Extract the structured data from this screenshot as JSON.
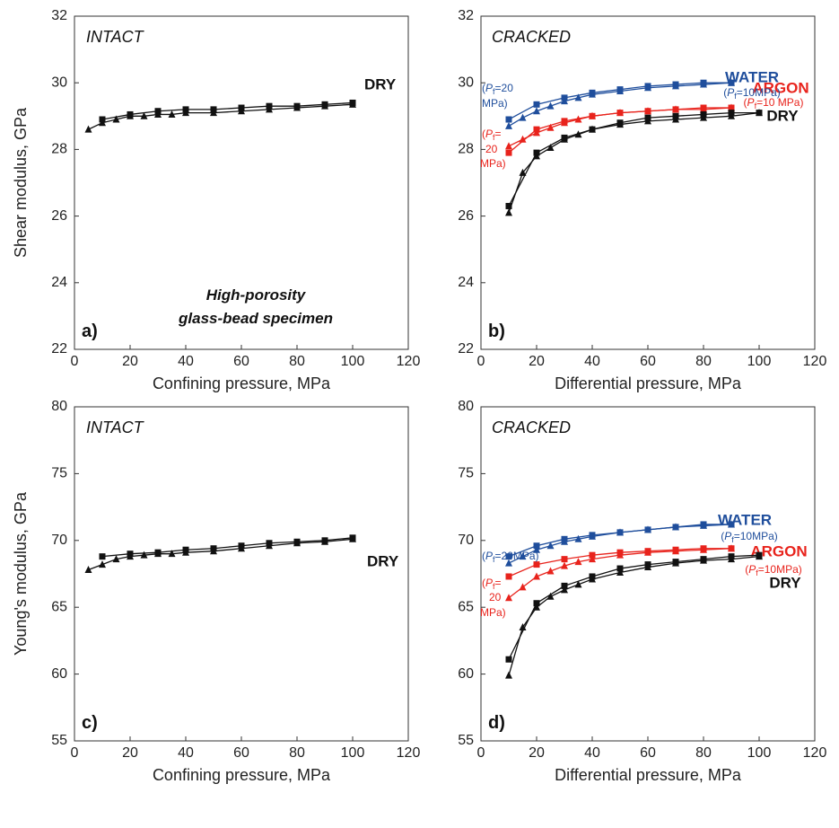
{
  "chart_data": [
    {
      "type": "line",
      "xlabel": "Confining pressure, MPa",
      "ylabel": "Shear modulus, GPa",
      "xlim": [
        0,
        120
      ],
      "xticks": [
        0,
        20,
        40,
        60,
        80,
        100,
        120
      ],
      "ylim": [
        22,
        32
      ],
      "yticks": [
        22,
        24,
        26,
        28,
        30,
        32
      ],
      "series": [
        {
          "name": "DRY",
          "color": "#111111",
          "marker": "triangle",
          "x": [
            5,
            10,
            15,
            20,
            25,
            30,
            35,
            40,
            50,
            60,
            70,
            80,
            90,
            100
          ],
          "values": [
            28.6,
            28.8,
            28.9,
            29.0,
            29.0,
            29.05,
            29.05,
            29.1,
            29.1,
            29.15,
            29.2,
            29.25,
            29.3,
            29.35
          ]
        },
        {
          "color": "#111111",
          "marker": "square",
          "x": [
            100,
            90,
            80,
            70,
            60,
            50,
            40,
            30,
            20,
            10
          ],
          "values": [
            29.4,
            29.35,
            29.3,
            29.3,
            29.25,
            29.2,
            29.2,
            29.15,
            29.05,
            28.9
          ]
        }
      ],
      "annotations": [
        {
          "parts": [
            "INTACT"
          ]
        },
        {
          "parts": [
            "High-porosity"
          ]
        },
        {
          "parts": [
            "glass-bead specimen"
          ]
        },
        {
          "parts": [
            "a)"
          ]
        }
      ]
    },
    {
      "type": "line",
      "xlabel": "Differential pressure, MPa",
      "xlim": [
        0,
        120
      ],
      "xticks": [
        0,
        20,
        40,
        60,
        80,
        100,
        120
      ],
      "ylim": [
        22,
        32
      ],
      "yticks": [
        22,
        24,
        26,
        28,
        30,
        32
      ],
      "series": [
        {
          "name": "WATER",
          "color": "#1f4e9c",
          "marker": "triangle",
          "x": [
            10,
            15,
            20,
            25,
            30,
            35,
            40,
            50,
            60,
            70,
            80,
            90
          ],
          "values": [
            28.7,
            28.95,
            29.15,
            29.3,
            29.45,
            29.55,
            29.65,
            29.75,
            29.85,
            29.9,
            29.95,
            30.0
          ]
        },
        {
          "color": "#1f4e9c",
          "marker": "square",
          "x": [
            90,
            80,
            70,
            60,
            50,
            40,
            30,
            20,
            10
          ],
          "values": [
            30.0,
            30.0,
            29.95,
            29.9,
            29.8,
            29.7,
            29.55,
            29.35,
            28.9
          ]
        },
        {
          "name": "ARGON",
          "color": "#e8231c",
          "marker": "triangle",
          "x": [
            10,
            15,
            20,
            25,
            30,
            35,
            40,
            50,
            60,
            70,
            80,
            90
          ],
          "values": [
            28.1,
            28.3,
            28.5,
            28.65,
            28.8,
            28.9,
            29.0,
            29.1,
            29.15,
            29.2,
            29.2,
            29.25
          ]
        },
        {
          "color": "#e8231c",
          "marker": "square",
          "x": [
            90,
            80,
            70,
            60,
            50,
            40,
            30,
            20,
            10
          ],
          "values": [
            29.25,
            29.25,
            29.2,
            29.15,
            29.1,
            29.0,
            28.85,
            28.6,
            27.9
          ]
        },
        {
          "name": "DRY",
          "color": "#111111",
          "marker": "triangle",
          "x": [
            10,
            15,
            20,
            25,
            30,
            35,
            40,
            50,
            60,
            70,
            80,
            90,
            100
          ],
          "values": [
            26.1,
            27.3,
            27.8,
            28.05,
            28.3,
            28.45,
            28.6,
            28.75,
            28.85,
            28.9,
            28.95,
            29.0,
            29.1
          ]
        },
        {
          "color": "#111111",
          "marker": "square",
          "x": [
            100,
            90,
            80,
            70,
            60,
            50,
            40,
            30,
            20,
            10
          ],
          "values": [
            29.1,
            29.1,
            29.05,
            29.0,
            28.95,
            28.8,
            28.6,
            28.35,
            27.9,
            26.3
          ]
        }
      ],
      "annotations": [
        {
          "parts": [
            "CRACKED"
          ]
        },
        {
          "parts": [
            "b)"
          ]
        },
        {
          "parts": [
            "(",
            "P",
            "f",
            "=10MPa)"
          ],
          "color": "#1f4e9c"
        },
        {
          "parts": [
            "(",
            "P",
            "f",
            "=20"
          ],
          "color": "#1f4e9c"
        },
        {
          "parts": [
            "MPa)"
          ],
          "color": "#1f4e9c"
        },
        {
          "parts": [
            "(",
            "P",
            "f",
            "=10 MPa)"
          ],
          "color": "#e8231c"
        },
        {
          "parts": [
            "(",
            "P",
            "f",
            "="
          ],
          "color": "#e8231c"
        },
        {
          "parts": [
            "20"
          ],
          "color": "#e8231c"
        },
        {
          "parts": [
            "MPa)"
          ],
          "color": "#e8231c"
        }
      ]
    },
    {
      "type": "line",
      "xlabel": "Confining pressure, MPa",
      "ylabel": "Young's modulus, GPa",
      "xlim": [
        0,
        120
      ],
      "xticks": [
        0,
        20,
        40,
        60,
        80,
        100,
        120
      ],
      "ylim": [
        55,
        80
      ],
      "yticks": [
        55,
        60,
        65,
        70,
        75,
        80
      ],
      "series": [
        {
          "name": "DRY",
          "color": "#111111",
          "marker": "triangle",
          "x": [
            5,
            10,
            15,
            20,
            25,
            30,
            35,
            40,
            50,
            60,
            70,
            80,
            90,
            100
          ],
          "values": [
            67.8,
            68.2,
            68.6,
            68.8,
            68.9,
            69.0,
            69.0,
            69.1,
            69.2,
            69.4,
            69.6,
            69.8,
            69.9,
            70.1
          ]
        },
        {
          "color": "#111111",
          "marker": "square",
          "x": [
            100,
            90,
            80,
            70,
            60,
            50,
            40,
            30,
            20,
            10
          ],
          "values": [
            70.2,
            70.0,
            69.9,
            69.8,
            69.6,
            69.4,
            69.3,
            69.1,
            69.0,
            68.8
          ]
        }
      ],
      "annotations": [
        {
          "parts": [
            "INTACT"
          ]
        },
        {
          "parts": [
            "c)"
          ]
        }
      ]
    },
    {
      "type": "line",
      "xlabel": "Differential pressure, MPa",
      "xlim": [
        0,
        120
      ],
      "xticks": [
        0,
        20,
        40,
        60,
        80,
        100,
        120
      ],
      "ylim": [
        55,
        80
      ],
      "yticks": [
        55,
        60,
        65,
        70,
        75,
        80
      ],
      "series": [
        {
          "name": "WATER",
          "color": "#1f4e9c",
          "marker": "triangle",
          "x": [
            10,
            15,
            20,
            25,
            30,
            35,
            40,
            50,
            60,
            70,
            80,
            90
          ],
          "values": [
            68.3,
            68.8,
            69.3,
            69.6,
            69.9,
            70.1,
            70.3,
            70.6,
            70.8,
            71.0,
            71.1,
            71.2
          ]
        },
        {
          "color": "#1f4e9c",
          "marker": "square",
          "x": [
            90,
            80,
            70,
            60,
            50,
            40,
            30,
            20,
            10
          ],
          "values": [
            71.2,
            71.2,
            71.0,
            70.8,
            70.6,
            70.4,
            70.1,
            69.6,
            68.8
          ]
        },
        {
          "name": "ARGON",
          "color": "#e8231c",
          "marker": "triangle",
          "x": [
            10,
            15,
            20,
            25,
            30,
            35,
            40,
            50,
            60,
            70,
            80,
            90
          ],
          "values": [
            65.7,
            66.5,
            67.3,
            67.7,
            68.1,
            68.4,
            68.6,
            68.9,
            69.1,
            69.2,
            69.3,
            69.4
          ]
        },
        {
          "color": "#e8231c",
          "marker": "square",
          "x": [
            90,
            80,
            70,
            60,
            50,
            40,
            30,
            20,
            10
          ],
          "values": [
            69.4,
            69.4,
            69.3,
            69.2,
            69.1,
            68.9,
            68.6,
            68.2,
            67.3
          ]
        },
        {
          "name": "DRY",
          "color": "#111111",
          "marker": "triangle",
          "x": [
            10,
            15,
            20,
            25,
            30,
            35,
            40,
            50,
            60,
            70,
            80,
            90,
            100
          ],
          "values": [
            59.9,
            63.5,
            65.0,
            65.8,
            66.3,
            66.7,
            67.1,
            67.6,
            68.0,
            68.3,
            68.5,
            68.6,
            68.8
          ]
        },
        {
          "color": "#111111",
          "marker": "square",
          "x": [
            100,
            90,
            80,
            70,
            60,
            50,
            40,
            30,
            20,
            10
          ],
          "values": [
            68.9,
            68.8,
            68.6,
            68.4,
            68.2,
            67.9,
            67.3,
            66.6,
            65.3,
            61.1
          ]
        }
      ],
      "annotations": [
        {
          "parts": [
            "CRACKED"
          ]
        },
        {
          "parts": [
            "d)"
          ]
        },
        {
          "parts": [
            "(",
            "P",
            "f",
            "=10MPa)"
          ],
          "color": "#1f4e9c"
        },
        {
          "parts": [
            "(",
            "P",
            "f",
            "=20MPa)"
          ],
          "color": "#1f4e9c"
        },
        {
          "parts": [
            "(",
            "P",
            "f",
            "=10MPa)"
          ],
          "color": "#e8231c"
        },
        {
          "parts": [
            "(",
            "P",
            "f",
            "="
          ],
          "color": "#e8231c"
        },
        {
          "parts": [
            "20"
          ],
          "color": "#e8231c"
        },
        {
          "parts": [
            "MPa)"
          ],
          "color": "#e8231c"
        }
      ]
    }
  ]
}
